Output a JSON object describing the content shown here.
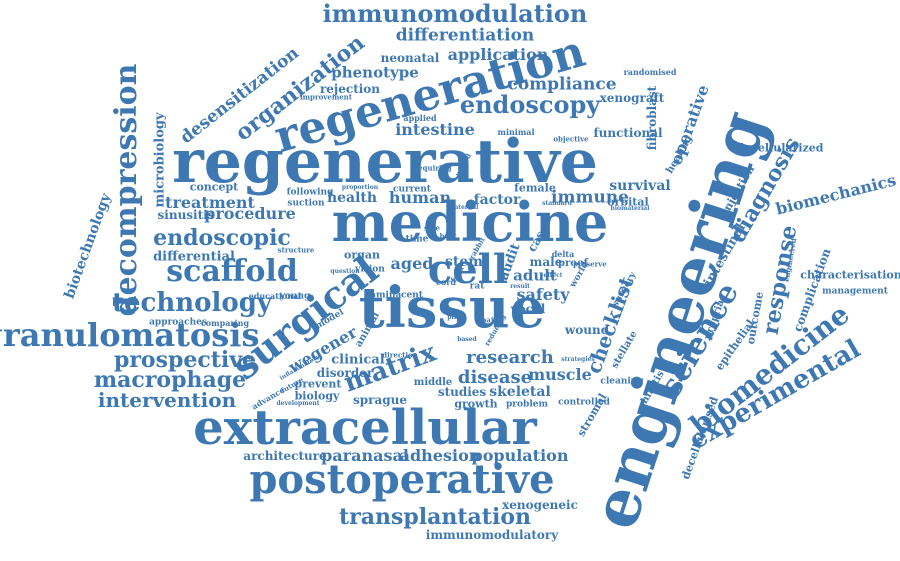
{
  "color": "#3e78b2",
  "words": [
    "immunomodulation",
    "differentiation",
    "neonatal",
    "application",
    "phenotype",
    "rejection",
    "desensitization",
    "organization",
    "regeneration",
    "regenerative",
    "microbiology",
    "decompression",
    "endoscopy",
    "compliance",
    "xenograft",
    "randomised",
    "fibroblast",
    "operative",
    "healing",
    "decellularized",
    "medicine",
    "engineering",
    "tissue",
    "surgical",
    "extracellular",
    "postoperative",
    "transplantation",
    "immunomodulatory",
    "xenogeneic",
    "population",
    "adhesion",
    "paranasal",
    "architecture",
    "intervention",
    "macrophage",
    "prospective",
    "granulomatosis",
    "technology",
    "biotechnology",
    "scaffold",
    "endoscopic",
    "differential",
    "treatment",
    "concept",
    "sinusitis",
    "procedure",
    "intestine",
    "human",
    "health",
    "factor",
    "immune",
    "female",
    "survival",
    "orbital",
    "functional",
    "diagnosis",
    "biomechanics",
    "injection",
    "intestinal",
    "response",
    "science",
    "checklist",
    "characterisation",
    "management",
    "complication",
    "outcome",
    "biomedicine",
    "experimental",
    "decellularised",
    "epithelial",
    "rhinitis",
    "propria",
    "stellate",
    "stromal",
    "cleaning",
    "wound",
    "controlled",
    "problem",
    "skeletal",
    "muscle",
    "disease",
    "research",
    "studies",
    "growth",
    "biology",
    "prevent",
    "clinical",
    "disorder",
    "sprague",
    "middle",
    "wegener",
    "matrix",
    "approaches",
    "comparing",
    "educational",
    "young",
    "lamina",
    "cent",
    "aged",
    "stem",
    "cell",
    "adult",
    "vocal",
    "safety",
    "audit",
    "rat",
    "surgery",
    "organ",
    "vision",
    "applied",
    "improvement",
    "current",
    "requiring",
    "following",
    "suction",
    "time",
    "case",
    "male",
    "proof",
    "world",
    "delta",
    "development",
    "advance",
    "direction",
    "model",
    "animal",
    "future",
    "pain",
    "cord",
    "fold",
    "based",
    "reducing",
    "question",
    "structure",
    "minimal",
    "period",
    "objective",
    "standard",
    "biomaterial",
    "engineered",
    "rabbit",
    "preserve",
    "result",
    "side",
    "host",
    "effect",
    "strategies",
    "proportion",
    "internal",
    "inflammatory",
    "pilot"
  ]
}
